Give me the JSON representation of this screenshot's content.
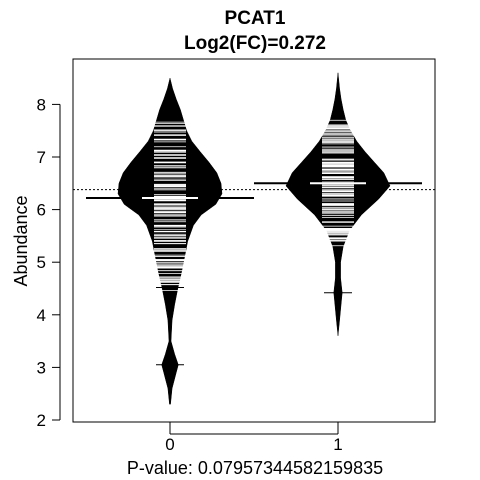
{
  "chart_data": {
    "type": "beanplot",
    "title": "PCAT1",
    "subtitle": "Log2(FC)=0.272",
    "xlabel": "P-value: 0.07957344582159835",
    "ylabel": "Abundance",
    "categories": [
      "0",
      "1"
    ],
    "ylim": [
      2,
      8.7
    ],
    "yticks": [
      2,
      3,
      4,
      5,
      6,
      7,
      8
    ],
    "overall_mean": 6.38,
    "groups": [
      {
        "name": "0",
        "mean": 6.22,
        "median": 6.18,
        "range": [
          2.3,
          8.5
        ],
        "mode": 6.35,
        "outliers": [
          3.05,
          4.52
        ],
        "density_shape": [
          [
            2.3,
            0.01
          ],
          [
            2.6,
            0.04
          ],
          [
            2.9,
            0.12
          ],
          [
            3.05,
            0.16
          ],
          [
            3.25,
            0.09
          ],
          [
            3.5,
            0.02
          ],
          [
            3.9,
            0.04
          ],
          [
            4.2,
            0.09
          ],
          [
            4.5,
            0.15
          ],
          [
            4.8,
            0.22
          ],
          [
            5.1,
            0.28
          ],
          [
            5.4,
            0.34
          ],
          [
            5.7,
            0.45
          ],
          [
            5.9,
            0.6
          ],
          [
            6.1,
            0.88
          ],
          [
            6.3,
            1.0
          ],
          [
            6.5,
            0.98
          ],
          [
            6.7,
            0.9
          ],
          [
            6.9,
            0.75
          ],
          [
            7.1,
            0.58
          ],
          [
            7.3,
            0.42
          ],
          [
            7.5,
            0.32
          ],
          [
            7.7,
            0.26
          ],
          [
            7.9,
            0.2
          ],
          [
            8.1,
            0.12
          ],
          [
            8.3,
            0.05
          ],
          [
            8.5,
            0.0
          ]
        ]
      },
      {
        "name": "1",
        "mean": 6.5,
        "median": 6.5,
        "range": [
          3.6,
          8.6
        ],
        "mode": 6.45,
        "outliers": [
          4.42
        ],
        "density_shape": [
          [
            3.6,
            0.0
          ],
          [
            3.9,
            0.03
          ],
          [
            4.2,
            0.06
          ],
          [
            4.42,
            0.08
          ],
          [
            4.7,
            0.05
          ],
          [
            5.0,
            0.05
          ],
          [
            5.3,
            0.1
          ],
          [
            5.6,
            0.22
          ],
          [
            5.9,
            0.45
          ],
          [
            6.2,
            0.78
          ],
          [
            6.45,
            1.0
          ],
          [
            6.7,
            0.88
          ],
          [
            6.9,
            0.7
          ],
          [
            7.1,
            0.52
          ],
          [
            7.3,
            0.36
          ],
          [
            7.5,
            0.24
          ],
          [
            7.7,
            0.15
          ],
          [
            7.9,
            0.1
          ],
          [
            8.1,
            0.06
          ],
          [
            8.3,
            0.03
          ],
          [
            8.6,
            0.0
          ]
        ]
      }
    ]
  }
}
